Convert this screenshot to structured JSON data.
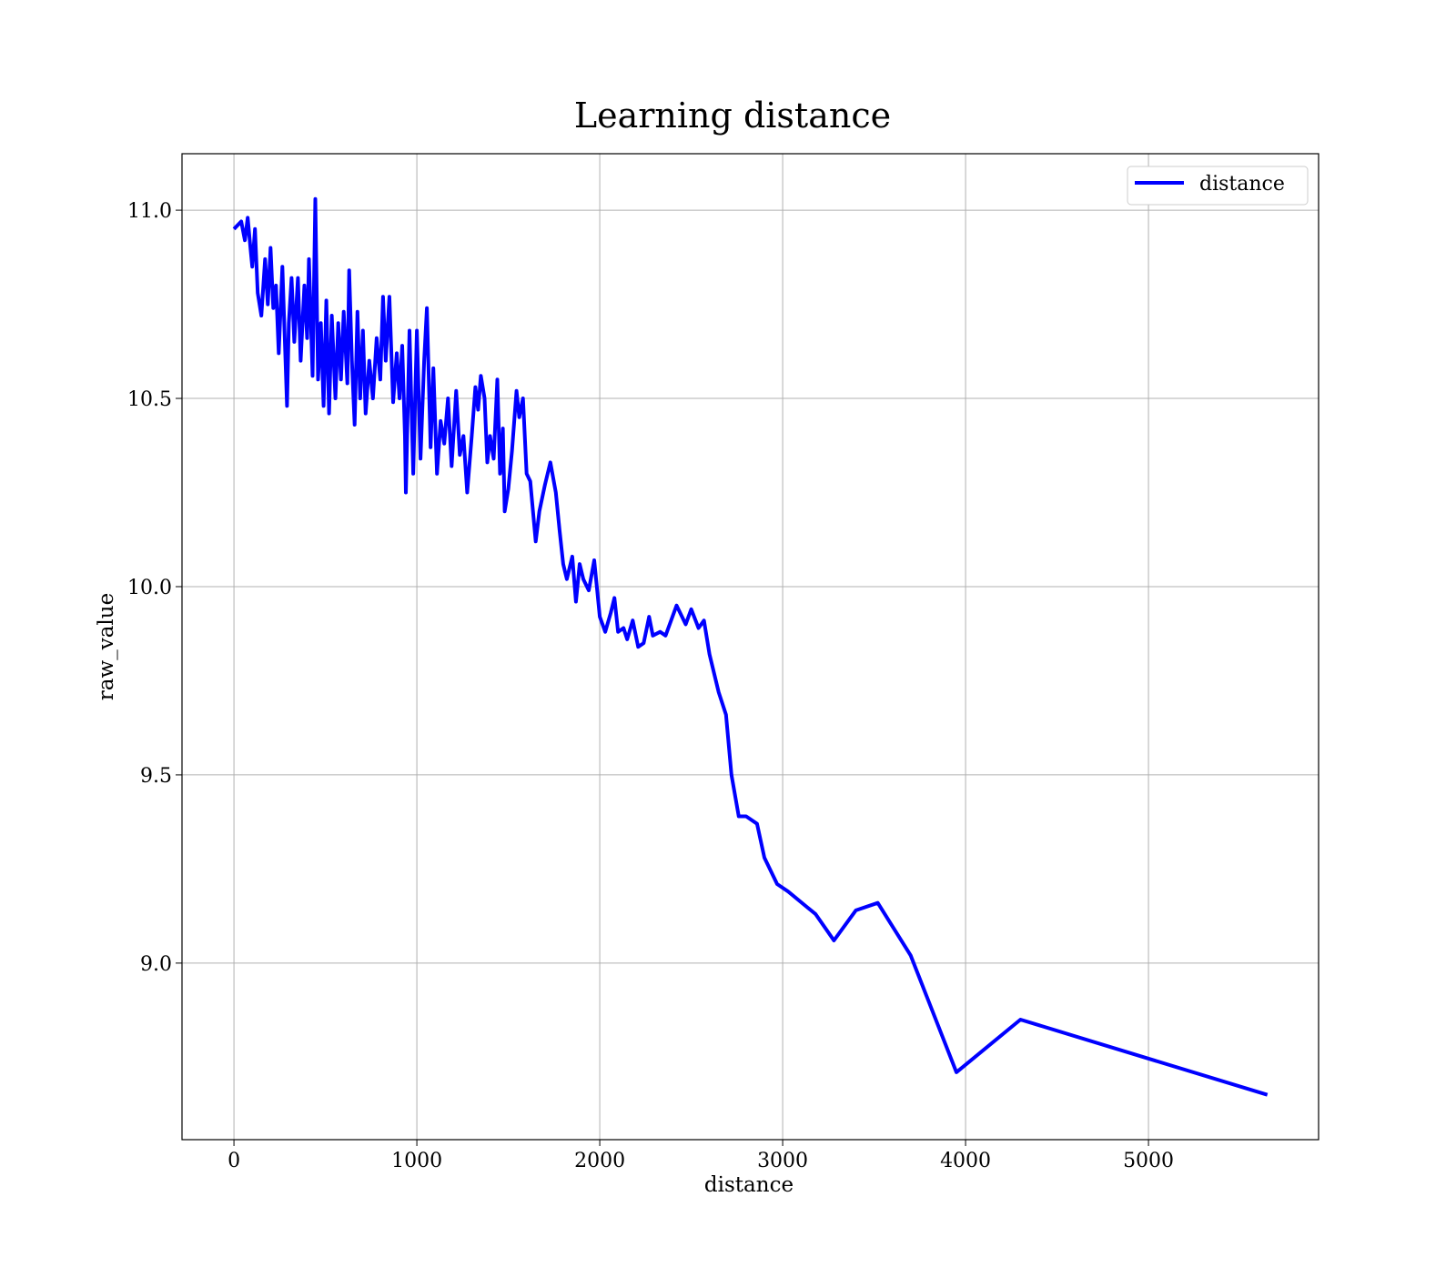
{
  "chart_data": {
    "type": "line",
    "title": "Learning distance",
    "xlabel": "distance",
    "ylabel": "raw_value",
    "x": [
      0,
      40,
      60,
      75,
      90,
      100,
      115,
      130,
      150,
      170,
      185,
      200,
      215,
      230,
      245,
      265,
      290,
      300,
      315,
      330,
      350,
      365,
      385,
      400,
      410,
      430,
      445,
      460,
      475,
      490,
      505,
      520,
      535,
      555,
      570,
      585,
      600,
      620,
      630,
      645,
      660,
      675,
      690,
      705,
      720,
      740,
      760,
      780,
      800,
      815,
      830,
      850,
      870,
      890,
      905,
      920,
      935,
      940,
      960,
      980,
      1000,
      1020,
      1040,
      1055,
      1075,
      1090,
      1110,
      1130,
      1150,
      1170,
      1190,
      1215,
      1235,
      1255,
      1275,
      1300,
      1320,
      1335,
      1350,
      1370,
      1385,
      1400,
      1420,
      1440,
      1455,
      1470,
      1480,
      1500,
      1520,
      1545,
      1560,
      1580,
      1600,
      1620,
      1650,
      1670,
      1700,
      1730,
      1760,
      1780,
      1800,
      1820,
      1850,
      1870,
      1890,
      1910,
      1940,
      1970,
      2000,
      2030,
      2060,
      2080,
      2100,
      2130,
      2150,
      2180,
      2210,
      2240,
      2270,
      2290,
      2330,
      2360,
      2420,
      2470,
      2500,
      2540,
      2570,
      2600,
      2650,
      2690,
      2720,
      2760,
      2800,
      2860,
      2900,
      2970,
      3030,
      3180,
      3280,
      3400,
      3520,
      3700,
      3950,
      4300,
      5650
    ],
    "series": [
      {
        "name": "distance",
        "color": "#0000ff",
        "values": [
          10.95,
          10.97,
          10.92,
          10.98,
          10.9,
          10.85,
          10.95,
          10.78,
          10.72,
          10.87,
          10.75,
          10.9,
          10.74,
          10.8,
          10.62,
          10.85,
          10.48,
          10.7,
          10.82,
          10.65,
          10.82,
          10.6,
          10.8,
          10.66,
          10.87,
          10.56,
          11.03,
          10.55,
          10.7,
          10.48,
          10.76,
          10.46,
          10.72,
          10.5,
          10.7,
          10.55,
          10.73,
          10.54,
          10.84,
          10.6,
          10.43,
          10.73,
          10.5,
          10.68,
          10.46,
          10.6,
          10.5,
          10.66,
          10.55,
          10.77,
          10.6,
          10.77,
          10.49,
          10.62,
          10.5,
          10.64,
          10.4,
          10.25,
          10.68,
          10.3,
          10.68,
          10.34,
          10.6,
          10.74,
          10.37,
          10.58,
          10.3,
          10.44,
          10.38,
          10.5,
          10.32,
          10.52,
          10.35,
          10.4,
          10.25,
          10.4,
          10.53,
          10.47,
          10.56,
          10.5,
          10.33,
          10.4,
          10.34,
          10.55,
          10.3,
          10.42,
          10.2,
          10.26,
          10.36,
          10.52,
          10.45,
          10.5,
          10.3,
          10.28,
          10.12,
          10.2,
          10.27,
          10.33,
          10.25,
          10.15,
          10.06,
          10.02,
          10.08,
          9.96,
          10.06,
          10.02,
          9.99,
          10.07,
          9.92,
          9.88,
          9.93,
          9.97,
          9.88,
          9.89,
          9.86,
          9.91,
          9.84,
          9.85,
          9.92,
          9.87,
          9.88,
          9.87,
          9.95,
          9.9,
          9.94,
          9.89,
          9.91,
          9.82,
          9.72,
          9.66,
          9.5,
          9.39,
          9.39,
          9.37,
          9.28,
          9.21,
          9.19,
          9.13,
          9.06,
          9.14,
          9.16,
          9.02,
          8.71,
          8.85,
          8.65
        ]
      }
    ],
    "xlim": [
      -284,
      5930
    ],
    "ylim": [
      8.531,
      11.15
    ],
    "xticks": [
      0,
      1000,
      2000,
      3000,
      4000,
      5000
    ],
    "yticks": [
      {
        "value": 9,
        "label": "9.0"
      },
      9.5,
      {
        "value": 10,
        "label": "10.0"
      },
      10.5,
      {
        "value": 11,
        "label": "11.0"
      }
    ],
    "grid": true,
    "legend": "upper right"
  }
}
